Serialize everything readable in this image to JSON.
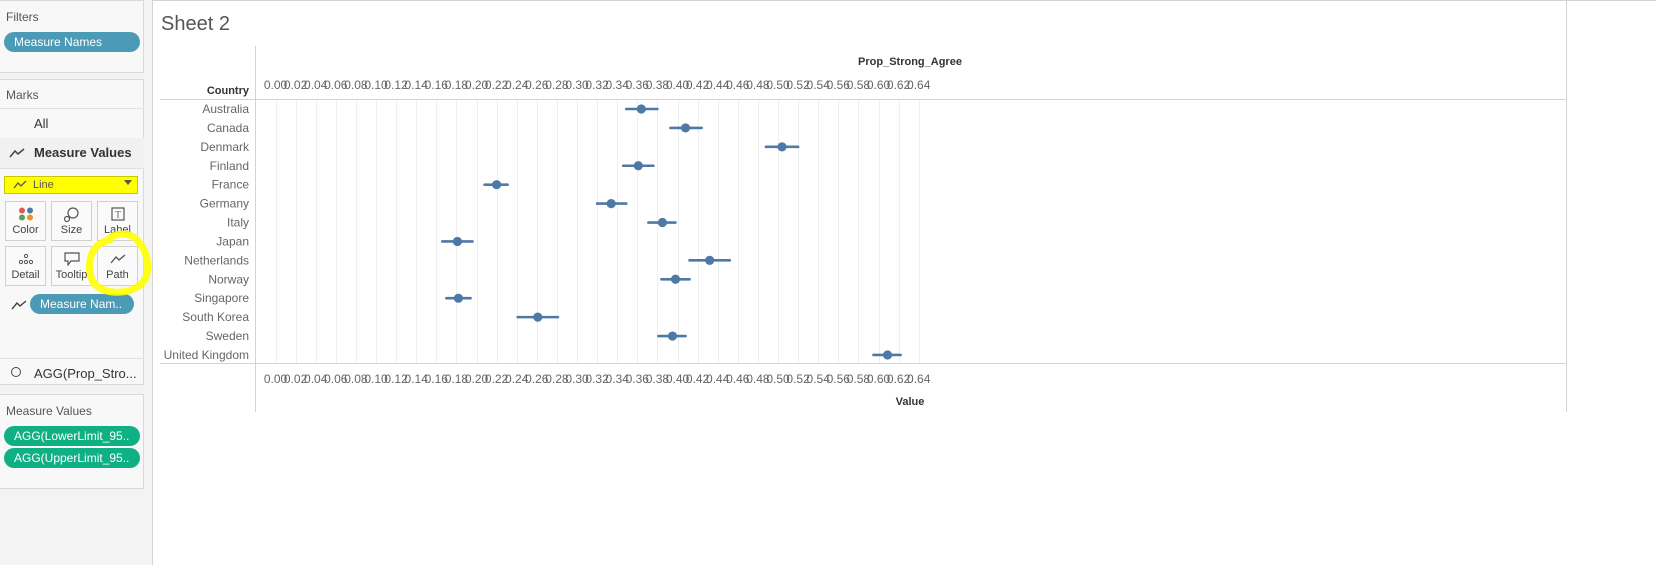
{
  "left_panel": {
    "filters": {
      "title": "Filters",
      "pill": "Measure Names"
    },
    "marks": {
      "title": "Marks",
      "all": "All",
      "measure_values": "Measure Values",
      "mark_type": "Line",
      "buttons": {
        "color": "Color",
        "size": "Size",
        "label": "Label",
        "detail": "Detail",
        "tooltip": "Tooltip",
        "path": "Path"
      },
      "path_pill": "Measure Nam..",
      "agg_item": "AGG(Prop_Stro..."
    },
    "measure_values": {
      "title": "Measure Values",
      "pills": [
        "AGG(LowerLimit_95..",
        "AGG(UpperLimit_95.."
      ]
    }
  },
  "sheet": {
    "title": "Sheet 2"
  },
  "colors": {
    "mark": "#4e79a7",
    "highlight": "#ffff00",
    "pill_blue": "#4b9ab6",
    "pill_green": "#10b085"
  },
  "chart_data": {
    "type": "scatter",
    "title": "",
    "top_axis_title": "Prop_Strong_Agree",
    "xlabel": "Value",
    "row_header": "Country",
    "xlim": [
      0,
      0.65
    ],
    "tick_labels": [
      "0.00",
      "0.02",
      "0.04",
      "0.06",
      "0.08",
      "0.10",
      "0.12",
      "0.14",
      "0.16",
      "0.18",
      "0.20",
      "0.22",
      "0.24",
      "0.26",
      "0.28",
      "0.30",
      "0.32",
      "0.34",
      "0.36",
      "0.38",
      "0.40",
      "0.42",
      "0.44",
      "0.46",
      "0.48",
      "0.50",
      "0.52",
      "0.54",
      "0.56",
      "0.58",
      "0.60",
      "0.62",
      "0.64"
    ],
    "grid": true,
    "categories": [
      "Australia",
      "Canada",
      "Denmark",
      "Finland",
      "France",
      "Germany",
      "Italy",
      "Japan",
      "Netherlands",
      "Norway",
      "Singapore",
      "South Korea",
      "Sweden",
      "United Kingdom"
    ],
    "series": [
      {
        "values": [
          0.364,
          0.408,
          0.504,
          0.361,
          0.22,
          0.334,
          0.385,
          0.181,
          0.432,
          0.398,
          0.182,
          0.261,
          0.395,
          0.609
        ]
      },
      {
        "values": [
          0.349,
          0.393,
          0.488,
          0.346,
          0.208,
          0.32,
          0.371,
          0.166,
          0.412,
          0.384,
          0.17,
          0.241,
          0.381,
          0.595
        ]
      },
      {
        "values": [
          0.38,
          0.424,
          0.52,
          0.376,
          0.231,
          0.349,
          0.398,
          0.196,
          0.452,
          0.412,
          0.194,
          0.281,
          0.408,
          0.622
        ]
      }
    ]
  }
}
